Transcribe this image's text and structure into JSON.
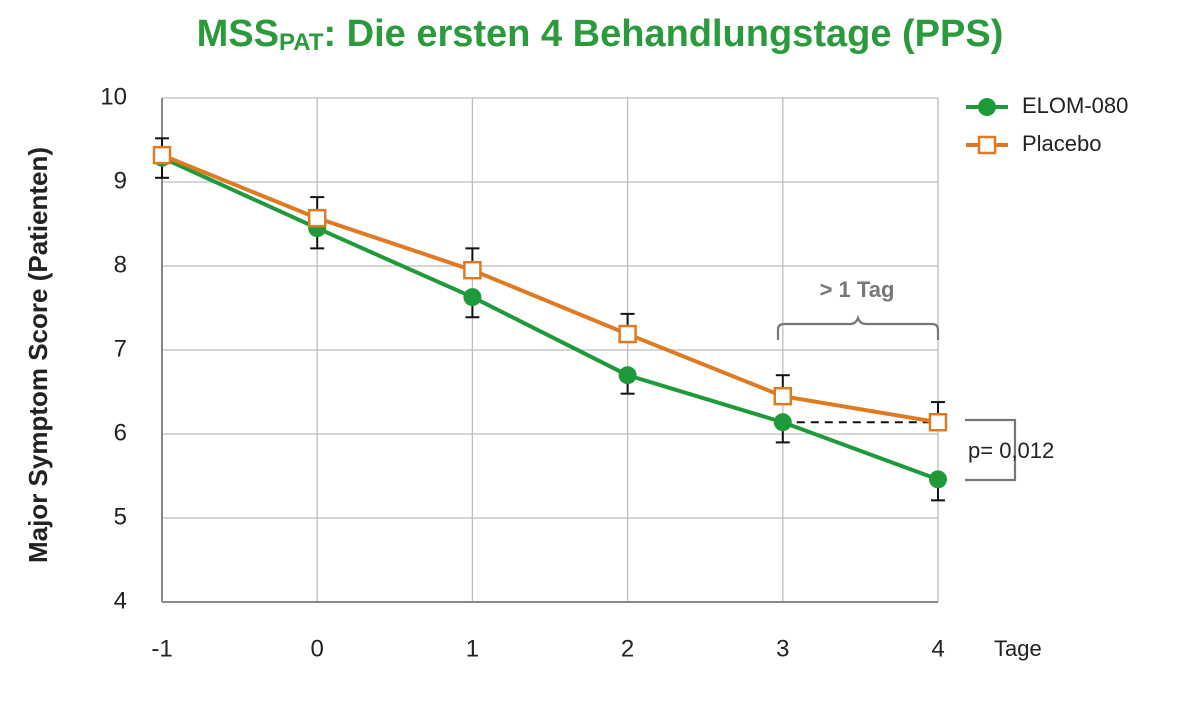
{
  "chart_data": {
    "type": "line",
    "title": "MSS",
    "title_subscript": "PAT",
    "title_rest": ": Die ersten 4 Behandlungstage (PPS)",
    "y_label": "Major Symptom Score (Patienten)",
    "x_label": "Tage",
    "x": [
      -1,
      0,
      1,
      2,
      3,
      4
    ],
    "series": [
      {
        "name": "ELOM-080",
        "color": "#1f9a3a",
        "marker": "circle",
        "error_direction": "down",
        "values": [
          9.29,
          8.45,
          7.63,
          6.7,
          6.14,
          5.46
        ],
        "errors": [
          0.24,
          0.24,
          0.24,
          0.22,
          0.24,
          0.25
        ]
      },
      {
        "name": "Placebo",
        "color": "#e07a22",
        "marker": "square",
        "error_direction": "up",
        "values": [
          9.32,
          8.57,
          7.95,
          7.19,
          6.45,
          6.14
        ],
        "errors": [
          0.2,
          0.25,
          0.26,
          0.24,
          0.25,
          0.24
        ]
      }
    ],
    "xlim": [
      -1,
      4
    ],
    "ylim": [
      4,
      10
    ],
    "xticks": [
      -1,
      0,
      1,
      2,
      3,
      4
    ],
    "yticks": [
      4,
      5,
      6,
      7,
      8,
      9,
      10
    ],
    "grid": true,
    "legend": "top-right",
    "annotations": {
      "bracket_label": "> 1 Tag",
      "p_value": "p= 0,012"
    }
  }
}
